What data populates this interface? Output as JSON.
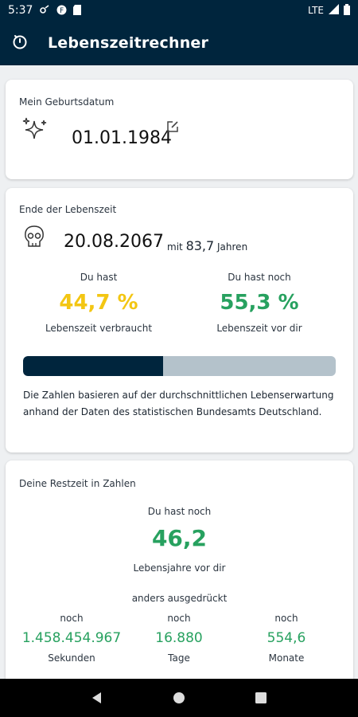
{
  "status_bar": {
    "time": "5:37",
    "network": "LTE"
  },
  "app_bar": {
    "title": "Lebenszeitrechner",
    "icon": "timer-icon"
  },
  "birth_card": {
    "label": "Mein Geburtsdatum",
    "date": "01.01.1984",
    "icon": "sparkles-icon",
    "edit_icon": "edit-icon"
  },
  "end_card": {
    "label": "Ende der Lebenszeit",
    "date": "20.08.2067",
    "mit": "mit",
    "age": "83,7",
    "years": "Jahren",
    "used": {
      "top": "Du hast",
      "value": "44,7 %",
      "bottom": "Lebenszeit verbraucht"
    },
    "remaining": {
      "top": "Du hast noch",
      "value": "55,3 %",
      "bottom": "Lebenszeit vor dir"
    },
    "progress_fraction": 0.447,
    "info": "Die Zahlen basieren auf der durchschnittlichen Lebenserwartung anhand der Daten des statistischen Bundesamts Deutschland.",
    "colors": {
      "used": "#f3c613",
      "remaining": "#27a15f",
      "bar": "#00253d",
      "bar_bg": "#b4c2cb"
    }
  },
  "rest_card": {
    "label": "Deine Restzeit in Zahlen",
    "top": "Du hast noch",
    "value": "46,2",
    "bottom": "Lebensjahre vor dir",
    "alt": "anders ausgedrückt",
    "stats": [
      {
        "prefix": "noch",
        "value": "1.458.454.967",
        "unit": "Sekunden"
      },
      {
        "prefix": "noch",
        "value": "16.880",
        "unit": "Tage"
      },
      {
        "prefix": "noch",
        "value": "554,6",
        "unit": "Monate"
      }
    ]
  }
}
